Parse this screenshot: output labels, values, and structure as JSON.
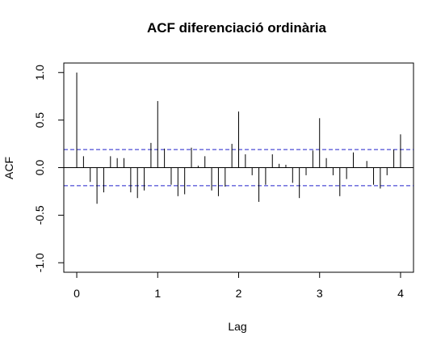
{
  "chart_data": {
    "type": "bar",
    "title": "ACF diferenciació ordinària",
    "xlabel": "Lag",
    "ylabel": "ACF",
    "xlim": [
      -0.16,
      4.16
    ],
    "ylim": [
      -1.1,
      1.1
    ],
    "x_ticks": [
      0,
      1,
      2,
      3,
      4
    ],
    "x_tick_labels": [
      "0",
      "1",
      "2",
      "3",
      "4"
    ],
    "y_ticks": [
      -1.0,
      -0.5,
      0.0,
      0.5,
      1.0
    ],
    "y_tick_labels": [
      "-1.0",
      "-0.5",
      "0.0",
      "0.5",
      "1.0"
    ],
    "confidence_band": 0.19,
    "confidence_color": "#2222cc",
    "lag_step": 0.08333,
    "acf_values": [
      1.0,
      0.12,
      -0.15,
      -0.38,
      -0.26,
      0.12,
      0.1,
      0.1,
      -0.26,
      -0.32,
      -0.24,
      0.26,
      0.7,
      0.2,
      -0.18,
      -0.3,
      -0.28,
      0.21,
      0.02,
      0.12,
      -0.24,
      -0.3,
      -0.2,
      0.25,
      0.59,
      0.14,
      -0.08,
      -0.36,
      -0.18,
      0.14,
      0.04,
      0.03,
      -0.16,
      -0.32,
      -0.08,
      0.18,
      0.52,
      0.1,
      -0.08,
      -0.3,
      -0.12,
      0.16,
      0.0,
      0.07,
      -0.18,
      -0.22,
      -0.08,
      0.19,
      0.35
    ]
  }
}
